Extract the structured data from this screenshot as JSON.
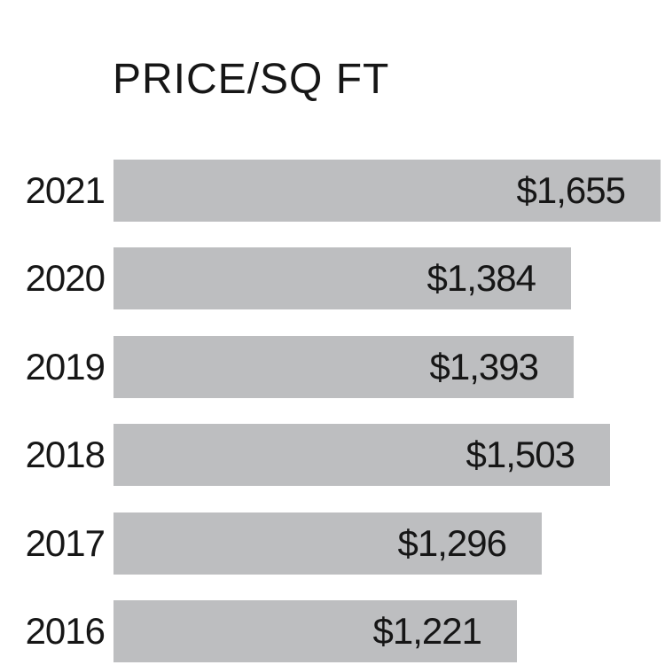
{
  "chart_data": {
    "type": "bar",
    "orientation": "horizontal",
    "title": "PRICE/SQ FT",
    "categories": [
      "2021",
      "2020",
      "2019",
      "2018",
      "2017",
      "2016"
    ],
    "values": [
      1655,
      1384,
      1393,
      1503,
      1296,
      1221
    ],
    "value_labels": [
      "$1,655",
      "$1,384",
      "$1,393",
      "$1,503",
      "$1,296",
      "$1,221"
    ],
    "xlabel": "",
    "ylabel": "",
    "xlim": [
      0,
      1680
    ],
    "grid": false,
    "legend": "none",
    "value_label_position": "inside-right",
    "bar_color": "#bdbec0",
    "text_color": "#161616",
    "background_color": "#ffffff"
  }
}
